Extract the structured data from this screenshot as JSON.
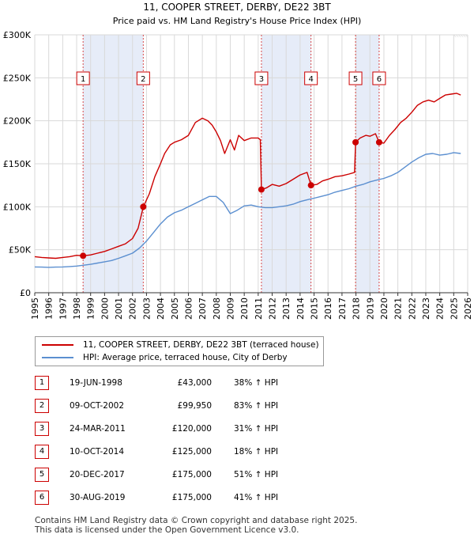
{
  "chart_data": {
    "type": "line",
    "title": "11, COOPER STREET, DERBY, DE22 3BT",
    "subtitle": "Price paid vs. HM Land Registry's House Price Index (HPI)",
    "xlim": [
      1995,
      2026
    ],
    "ylim": [
      0,
      300000
    ],
    "y_ticks": [
      0,
      50000,
      100000,
      150000,
      200000,
      250000,
      300000
    ],
    "y_tick_labels": [
      "£0",
      "£50K",
      "£100K",
      "£150K",
      "£200K",
      "£250K",
      "£300K"
    ],
    "x_ticks": [
      1995,
      1996,
      1997,
      1998,
      1999,
      2000,
      2001,
      2002,
      2003,
      2004,
      2005,
      2006,
      2007,
      2008,
      2009,
      2010,
      2011,
      2012,
      2013,
      2014,
      2015,
      2016,
      2017,
      2018,
      2019,
      2020,
      2021,
      2022,
      2023,
      2024,
      2025,
      2026
    ],
    "x_tick_labels": [
      "1995",
      "1996",
      "1997",
      "1998",
      "1999",
      "2000",
      "2001",
      "2002",
      "2003",
      "2004",
      "2005",
      "2006",
      "2007",
      "2008",
      "2009",
      "2010",
      "2011",
      "2012",
      "2013",
      "2014",
      "2015",
      "2016",
      "2017",
      "2018",
      "2019",
      "2020",
      "2021",
      "2022",
      "2023",
      "2024",
      "2025",
      "2026"
    ],
    "grid": true,
    "shaded_periods": [
      [
        1998.46,
        2002.77
      ],
      [
        2011.23,
        2014.78
      ],
      [
        2017.97,
        2019.66
      ]
    ],
    "series": [
      {
        "name": "11, COOPER STREET, DERBY, DE22 3BT (terraced house)",
        "color": "#cc0000",
        "x": [
          1995.0,
          1995.5,
          1996.0,
          1996.5,
          1997.0,
          1997.5,
          1998.0,
          1998.46,
          1999.0,
          1999.5,
          2000.0,
          2000.5,
          2001.0,
          2001.5,
          2002.0,
          2002.4,
          2002.77,
          2003.2,
          2003.6,
          2004.0,
          2004.3,
          2004.7,
          2005.0,
          2005.5,
          2006.0,
          2006.5,
          2007.0,
          2007.4,
          2007.7,
          2008.0,
          2008.3,
          2008.6,
          2009.0,
          2009.3,
          2009.6,
          2010.0,
          2010.5,
          2011.0,
          2011.15,
          2011.23,
          2011.6,
          2012.0,
          2012.5,
          2013.0,
          2013.5,
          2014.0,
          2014.5,
          2014.78,
          2015.2,
          2015.6,
          2016.0,
          2016.5,
          2017.0,
          2017.5,
          2017.9,
          2017.97,
          2018.3,
          2018.7,
          2019.0,
          2019.4,
          2019.66,
          2020.0,
          2020.4,
          2020.8,
          2021.2,
          2021.6,
          2022.0,
          2022.4,
          2022.8,
          2023.2,
          2023.6,
          2024.0,
          2024.4,
          2024.8,
          2025.2,
          2025.5
        ],
        "values": [
          42000,
          41000,
          40500,
          40000,
          41000,
          42000,
          43500,
          43000,
          44000,
          46000,
          48000,
          51000,
          54000,
          57000,
          63000,
          75000,
          99950,
          115000,
          135000,
          150000,
          162000,
          172000,
          175000,
          178000,
          183000,
          198000,
          203000,
          200000,
          195000,
          187000,
          177000,
          162000,
          178000,
          166000,
          183000,
          177000,
          180000,
          180000,
          178000,
          120000,
          122000,
          126000,
          124000,
          127000,
          132000,
          137000,
          140000,
          125000,
          126000,
          130000,
          132000,
          135000,
          136000,
          138000,
          140000,
          175000,
          180000,
          183000,
          182000,
          185000,
          175000,
          174000,
          183000,
          190000,
          198000,
          203000,
          210000,
          218000,
          222000,
          224000,
          222000,
          226000,
          230000,
          231000,
          232000,
          230000
        ]
      },
      {
        "name": "HPI: Average price, terraced house, City of Derby",
        "color": "#5b8fd0",
        "x": [
          1995.0,
          1995.5,
          1996.0,
          1996.5,
          1997.0,
          1997.5,
          1998.0,
          1998.5,
          1999.0,
          1999.5,
          2000.0,
          2000.5,
          2001.0,
          2001.5,
          2002.0,
          2002.5,
          2003.0,
          2003.5,
          2004.0,
          2004.5,
          2005.0,
          2005.5,
          2006.0,
          2006.5,
          2007.0,
          2007.5,
          2008.0,
          2008.5,
          2009.0,
          2009.5,
          2010.0,
          2010.5,
          2011.0,
          2011.5,
          2012.0,
          2012.5,
          2013.0,
          2013.5,
          2014.0,
          2014.5,
          2015.0,
          2015.5,
          2016.0,
          2016.5,
          2017.0,
          2017.5,
          2018.0,
          2018.5,
          2019.0,
          2019.5,
          2020.0,
          2020.5,
          2021.0,
          2021.5,
          2022.0,
          2022.5,
          2023.0,
          2023.5,
          2024.0,
          2024.5,
          2025.0,
          2025.5
        ],
        "values": [
          30000,
          29800,
          29500,
          29800,
          30000,
          30500,
          31000,
          32000,
          33000,
          34500,
          36000,
          37500,
          40000,
          43000,
          46000,
          52000,
          60000,
          70000,
          80000,
          88000,
          93000,
          96000,
          100000,
          104000,
          108000,
          112000,
          112000,
          105000,
          92000,
          96000,
          101000,
          102000,
          100000,
          99000,
          99000,
          100000,
          101000,
          103000,
          106000,
          108000,
          110000,
          112000,
          114000,
          117000,
          119000,
          121000,
          124000,
          126000,
          129000,
          131000,
          133000,
          136000,
          140000,
          146000,
          152000,
          157000,
          161000,
          162000,
          160000,
          161000,
          163000,
          162000
        ]
      }
    ],
    "sales": [
      {
        "label": "1",
        "x": 1998.46,
        "value": 43000
      },
      {
        "label": "2",
        "x": 2002.77,
        "value": 99950
      },
      {
        "label": "3",
        "x": 2011.23,
        "value": 120000
      },
      {
        "label": "4",
        "x": 2014.78,
        "value": 125000
      },
      {
        "label": "5",
        "x": 2017.97,
        "value": 175000
      },
      {
        "label": "6",
        "x": 2019.66,
        "value": 175000
      }
    ]
  },
  "legend": {
    "property_label": "11, COOPER STREET, DERBY, DE22 3BT (terraced house)",
    "hpi_label": "HPI: Average price, terraced house, City of Derby",
    "property_color": "#cc0000",
    "hpi_color": "#5b8fd0"
  },
  "sales_table": [
    {
      "num": "1",
      "date": "19-JUN-1998",
      "price": "£43,000",
      "hpi": "38% ↑ HPI"
    },
    {
      "num": "2",
      "date": "09-OCT-2002",
      "price": "£99,950",
      "hpi": "83% ↑ HPI"
    },
    {
      "num": "3",
      "date": "24-MAR-2011",
      "price": "£120,000",
      "hpi": "31% ↑ HPI"
    },
    {
      "num": "4",
      "date": "10-OCT-2014",
      "price": "£125,000",
      "hpi": "18% ↑ HPI"
    },
    {
      "num": "5",
      "date": "20-DEC-2017",
      "price": "£175,000",
      "hpi": "51% ↑ HPI"
    },
    {
      "num": "6",
      "date": "30-AUG-2019",
      "price": "£175,000",
      "hpi": "41% ↑ HPI"
    }
  ],
  "footer": {
    "line1": "Contains HM Land Registry data © Crown copyright and database right 2025.",
    "line2": "This data is licensed under the Open Government Licence v3.0."
  }
}
